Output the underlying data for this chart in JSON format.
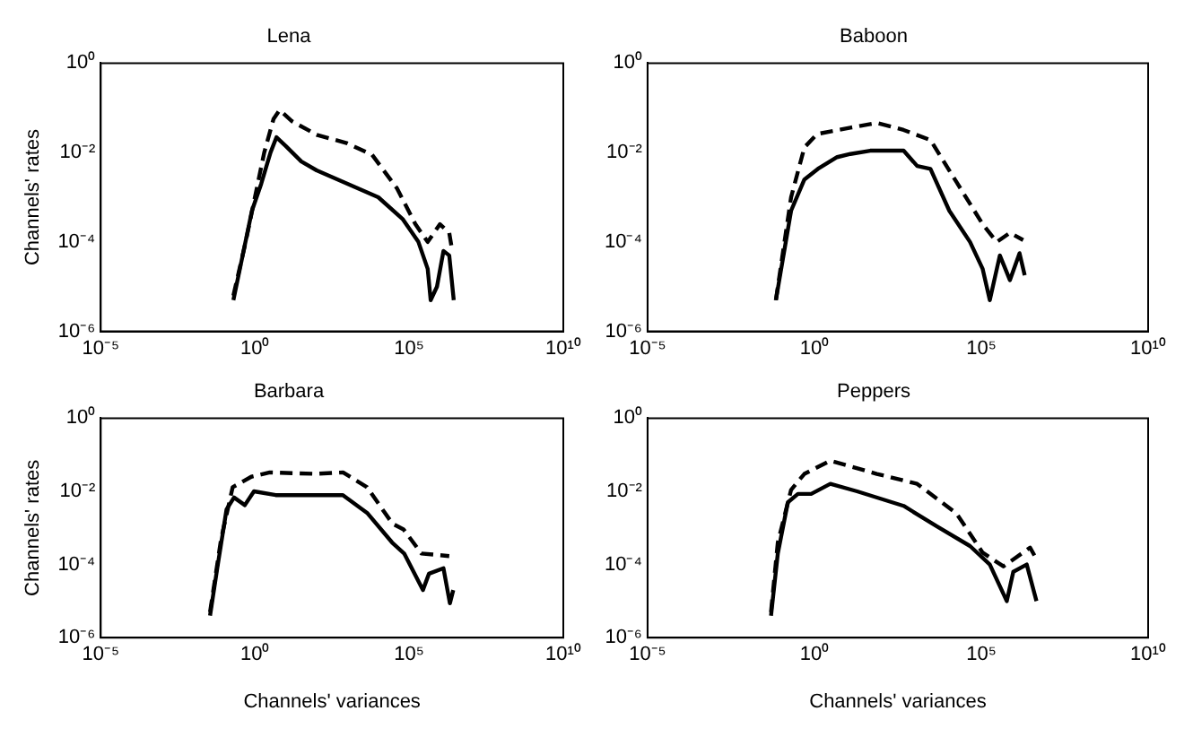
{
  "chart_data": [
    {
      "type": "line",
      "title": "Lena",
      "ylabel": "Channels' rates",
      "log": "xy",
      "grid": false,
      "legend": false,
      "marker": "none",
      "xlim": [
        1e-05,
        10000000000.0
      ],
      "xticks": [
        {
          "value": 1e-05,
          "label": "10⁻⁵"
        },
        {
          "value": 1,
          "label": "10⁰"
        },
        {
          "value": 100000.0,
          "label": "10⁵"
        },
        {
          "value": 10000000000.0,
          "label": "10¹⁰"
        }
      ],
      "ylim": [
        1e-06,
        1
      ],
      "yticks": [
        {
          "value": 1e-06,
          "label": "10⁻⁶"
        },
        {
          "value": 0.0001,
          "label": "10⁻⁴"
        },
        {
          "value": 0.01,
          "label": "10⁻²"
        },
        {
          "value": 1,
          "label": "10⁰"
        }
      ],
      "series": [
        {
          "color": "#000000",
          "line_style": "solid",
          "x": [
            0.2,
            0.4,
            0.8,
            1.6,
            3.2,
            5,
            10,
            32,
            100,
            1000,
            10000.0,
            63000.0,
            200000.0,
            400000.0,
            500000.0,
            800000.0,
            1300000.0,
            2000000.0,
            2800000.0
          ],
          "values": [
            5e-06,
            5e-05,
            0.0005,
            0.002,
            0.01,
            0.022,
            0.014,
            0.0063,
            0.004,
            0.002,
            0.001,
            0.00032,
            0.0001,
            2.5e-05,
            5e-06,
            1e-05,
            6.3e-05,
            5e-05,
            5e-06
          ]
        },
        {
          "color": "#000000",
          "line_style": "dashed",
          "x": [
            0.2,
            0.5,
            1,
            2,
            4,
            6.3,
            16,
            100,
            1000,
            6300,
            40000.0,
            160000.0,
            400000.0,
            1000000.0,
            2000000.0,
            2500000.0
          ],
          "values": [
            6.3e-06,
            0.0001,
            0.001,
            0.01,
            0.056,
            0.089,
            0.05,
            0.025,
            0.016,
            0.0089,
            0.0016,
            0.00025,
            0.0001,
            0.00025,
            0.00016,
            6.3e-05
          ]
        }
      ]
    },
    {
      "type": "line",
      "title": "Baboon",
      "log": "xy",
      "grid": false,
      "legend": false,
      "marker": "none",
      "xlim": [
        1e-05,
        10000000000.0
      ],
      "xticks": [
        {
          "value": 1e-05,
          "label": "10⁻⁵"
        },
        {
          "value": 1,
          "label": "10⁰"
        },
        {
          "value": 100000.0,
          "label": "10⁵"
        },
        {
          "value": 10000000000.0,
          "label": "10¹⁰"
        }
      ],
      "ylim": [
        1e-06,
        1
      ],
      "yticks": [
        {
          "value": 1e-06,
          "label": "10⁻⁶"
        },
        {
          "value": 0.0001,
          "label": "10⁻⁴"
        },
        {
          "value": 0.01,
          "label": "10⁻²"
        },
        {
          "value": 1,
          "label": "10⁰"
        }
      ],
      "series": [
        {
          "color": "#000000",
          "line_style": "solid",
          "x": [
            0.07,
            0.2,
            0.5,
            1.26,
            4.8,
            12,
            47,
            470,
            1200,
            3000,
            11000.0,
            46000.0,
            110000.0,
            180000.0,
            360000.0,
            720000.0,
            1400000.0,
            2000000.0
          ],
          "values": [
            5e-06,
            0.0005,
            0.0025,
            0.0043,
            0.0079,
            0.0093,
            0.011,
            0.011,
            0.005,
            0.0043,
            0.0005,
            0.0001,
            2.5e-05,
            5e-06,
            5e-05,
            1.4e-05,
            5.6e-05,
            1.8e-05
          ]
        },
        {
          "color": "#000000",
          "line_style": "dashed",
          "x": [
            0.07,
            0.2,
            0.5,
            1.2,
            12,
            74,
            470,
            3000,
            18000.0,
            110000.0,
            290000.0,
            720000.0,
            1800000.0
          ],
          "values": [
            5e-06,
            0.001,
            0.013,
            0.026,
            0.036,
            0.046,
            0.032,
            0.019,
            0.0022,
            0.00025,
            0.0001,
            0.00016,
            0.00011
          ]
        }
      ]
    },
    {
      "type": "line",
      "title": "Barbara",
      "xlabel": "Channels' variances",
      "ylabel": "Channels' rates",
      "log": "xy",
      "grid": false,
      "legend": false,
      "marker": "none",
      "xlim": [
        1e-05,
        10000000000.0
      ],
      "xticks": [
        {
          "value": 1e-05,
          "label": "10⁻⁵"
        },
        {
          "value": 1,
          "label": "10⁰"
        },
        {
          "value": 100000.0,
          "label": "10⁵"
        },
        {
          "value": 10000000000.0,
          "label": "10¹⁰"
        }
      ],
      "ylim": [
        1e-06,
        1
      ],
      "yticks": [
        {
          "value": 1e-06,
          "label": "10⁻⁶"
        },
        {
          "value": 0.0001,
          "label": "10⁻⁴"
        },
        {
          "value": 0.01,
          "label": "10⁻²"
        },
        {
          "value": 1,
          "label": "10⁰"
        }
      ],
      "series": [
        {
          "color": "#000000",
          "line_style": "solid",
          "x": [
            0.035,
            0.06,
            0.12,
            0.21,
            0.47,
            0.93,
            4.7,
            115,
            710,
            4500,
            28000.0,
            69000.0,
            280000.0,
            440000.0,
            1300000.0,
            2100000.0,
            2700000.0
          ],
          "values": [
            4e-06,
            7.9e-05,
            0.0032,
            0.0068,
            0.0042,
            0.01,
            0.0079,
            0.0079,
            0.0079,
            0.0025,
            0.0004,
            0.0002,
            2e-05,
            5.6e-05,
            7.9e-05,
            8.7e-06,
            2e-05
          ]
        },
        {
          "color": "#000000",
          "line_style": "dashed",
          "x": [
            0.035,
            0.08,
            0.19,
            0.76,
            3,
            91,
            720,
            4300,
            29000.0,
            66000.0,
            250000.0,
            2000000.0
          ],
          "values": [
            5e-06,
            0.0005,
            0.013,
            0.025,
            0.033,
            0.03,
            0.033,
            0.013,
            0.0013,
            0.00091,
            0.0002,
            0.00017
          ]
        }
      ]
    },
    {
      "type": "line",
      "title": "Peppers",
      "xlabel": "Channels' variances",
      "log": "xy",
      "grid": false,
      "legend": false,
      "marker": "none",
      "xlim": [
        1e-05,
        10000000000.0
      ],
      "xticks": [
        {
          "value": 1e-05,
          "label": "10⁻⁵"
        },
        {
          "value": 1,
          "label": "10⁰"
        },
        {
          "value": 100000.0,
          "label": "10⁵"
        },
        {
          "value": 10000000000.0,
          "label": "10¹⁰"
        }
      ],
      "ylim": [
        1e-06,
        1
      ],
      "yticks": [
        {
          "value": 1e-06,
          "label": "10⁻⁶"
        },
        {
          "value": 0.0001,
          "label": "10⁻⁴"
        },
        {
          "value": 0.01,
          "label": "10⁻²"
        },
        {
          "value": 1,
          "label": "10⁰"
        }
      ],
      "series": [
        {
          "color": "#000000",
          "line_style": "solid",
          "x": [
            0.05,
            0.08,
            0.16,
            0.32,
            0.8,
            3,
            19,
            470,
            4700,
            46000.0,
            180000.0,
            580000.0,
            910000.0,
            2300000.0,
            4500000.0
          ],
          "values": [
            4e-06,
            0.0002,
            0.005,
            0.0085,
            0.0085,
            0.016,
            0.01,
            0.004,
            0.0011,
            0.00032,
            0.0001,
            1e-05,
            6.3e-05,
            0.0001,
            1e-05
          ]
        },
        {
          "color": "#000000",
          "line_style": "dashed",
          "x": [
            0.05,
            0.08,
            0.2,
            0.5,
            3,
            74,
            1200,
            18000.0,
            110000.0,
            460000.0,
            2900000.0,
            4500000.0
          ],
          "values": [
            5e-06,
            0.0004,
            0.011,
            0.03,
            0.069,
            0.03,
            0.016,
            0.0025,
            0.00021,
            8.9e-05,
            0.00029,
            0.00014
          ]
        }
      ]
    }
  ]
}
